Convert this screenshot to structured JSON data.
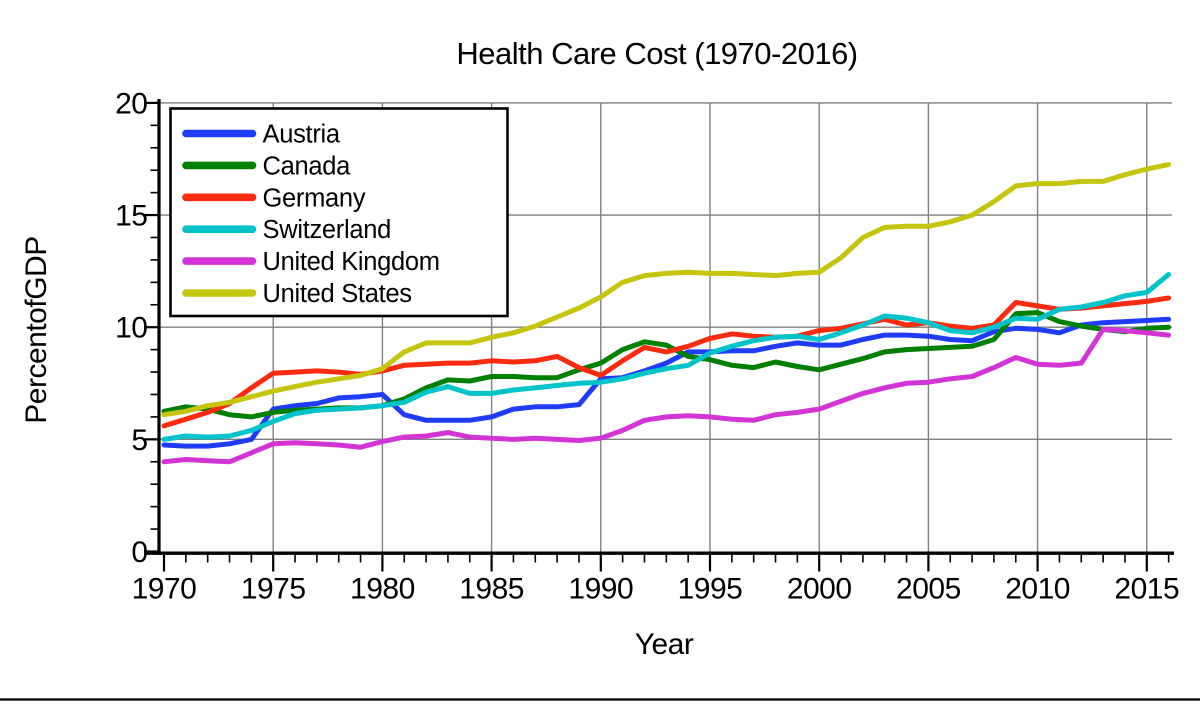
{
  "chart_data": {
    "type": "line",
    "title": "Health Care Cost (1970-2016)",
    "xlabel": "Year",
    "ylabel": "PercentofGDP",
    "xlim": [
      1970,
      2016.15
    ],
    "ylim": [
      0,
      20
    ],
    "x_ticks_major": [
      1970,
      1975,
      1980,
      1985,
      1990,
      1995,
      2000,
      2005,
      2010,
      2015
    ],
    "y_ticks_major": [
      0,
      5,
      10,
      15,
      20
    ],
    "grid": true,
    "grid_color": "#7f7f7f",
    "axis_color": "#000000",
    "legend_position": "top-left",
    "x": [
      1970,
      1971,
      1972,
      1973,
      1974,
      1975,
      1976,
      1977,
      1978,
      1979,
      1980,
      1981,
      1982,
      1983,
      1984,
      1985,
      1986,
      1987,
      1988,
      1989,
      1990,
      1991,
      1992,
      1993,
      1994,
      1995,
      1996,
      1997,
      1998,
      1999,
      2000,
      2001,
      2002,
      2003,
      2004,
      2005,
      2006,
      2007,
      2008,
      2009,
      2010,
      2011,
      2012,
      2013,
      2014,
      2015,
      2016
    ],
    "series": [
      {
        "name": "Austria",
        "color": "#1e3cfa",
        "values": [
          4.75,
          4.7,
          4.7,
          4.8,
          5.0,
          6.35,
          6.5,
          6.6,
          6.85,
          6.9,
          7.0,
          6.1,
          5.85,
          5.85,
          5.85,
          6.0,
          6.35,
          6.45,
          6.45,
          6.55,
          7.7,
          7.75,
          8.05,
          8.4,
          8.9,
          8.9,
          8.95,
          8.95,
          9.15,
          9.3,
          9.2,
          9.2,
          9.45,
          9.65,
          9.65,
          9.6,
          9.45,
          9.4,
          9.8,
          9.95,
          9.9,
          9.75,
          10.1,
          10.2,
          10.25,
          10.3,
          10.35
        ]
      },
      {
        "name": "Canada",
        "color": "#008000",
        "values": [
          6.25,
          6.45,
          6.35,
          6.1,
          6.0,
          6.2,
          6.3,
          6.35,
          6.4,
          6.4,
          6.5,
          6.8,
          7.3,
          7.65,
          7.6,
          7.8,
          7.8,
          7.75,
          7.75,
          8.1,
          8.4,
          9.0,
          9.35,
          9.2,
          8.7,
          8.55,
          8.3,
          8.2,
          8.45,
          8.25,
          8.1,
          8.35,
          8.6,
          8.9,
          9.0,
          9.05,
          9.1,
          9.15,
          9.45,
          10.6,
          10.65,
          10.25,
          10.05,
          9.9,
          9.8,
          9.95,
          10.0
        ]
      },
      {
        "name": "Germany",
        "color": "#fa2b0f",
        "values": [
          5.6,
          5.9,
          6.2,
          6.6,
          7.3,
          7.95,
          8.0,
          8.05,
          8.0,
          7.9,
          8.05,
          8.3,
          8.35,
          8.4,
          8.4,
          8.5,
          8.45,
          8.5,
          8.7,
          8.2,
          7.85,
          8.5,
          9.1,
          8.9,
          9.15,
          9.5,
          9.7,
          9.6,
          9.55,
          9.6,
          9.85,
          9.95,
          10.15,
          10.35,
          10.1,
          10.2,
          10.05,
          9.95,
          10.1,
          11.1,
          10.95,
          10.8,
          10.85,
          10.95,
          11.05,
          11.15,
          11.3
        ]
      },
      {
        "name": "Switzerland",
        "color": "#00c4ca",
        "values": [
          5.0,
          5.15,
          5.1,
          5.15,
          5.4,
          5.8,
          6.15,
          6.3,
          6.35,
          6.4,
          6.5,
          6.65,
          7.1,
          7.35,
          7.05,
          7.05,
          7.2,
          7.3,
          7.4,
          7.5,
          7.55,
          7.7,
          7.95,
          8.15,
          8.3,
          8.85,
          9.15,
          9.4,
          9.55,
          9.6,
          9.45,
          9.75,
          10.1,
          10.5,
          10.4,
          10.2,
          9.85,
          9.75,
          10.0,
          10.4,
          10.35,
          10.8,
          10.9,
          11.1,
          11.4,
          11.55,
          12.35
        ]
      },
      {
        "name": "United Kingdom",
        "color": "#d234d6",
        "values": [
          4.0,
          4.1,
          4.05,
          4.0,
          4.4,
          4.8,
          4.85,
          4.8,
          4.75,
          4.65,
          4.9,
          5.1,
          5.15,
          5.3,
          5.1,
          5.05,
          5.0,
          5.05,
          5.0,
          4.95,
          5.05,
          5.4,
          5.85,
          6.0,
          6.05,
          6.0,
          5.9,
          5.85,
          6.1,
          6.2,
          6.35,
          6.7,
          7.05,
          7.3,
          7.5,
          7.55,
          7.7,
          7.8,
          8.2,
          8.65,
          8.35,
          8.3,
          8.4,
          9.9,
          9.85,
          9.75,
          9.65
        ]
      },
      {
        "name": "United States",
        "color": "#c6c50e",
        "values": [
          6.1,
          6.25,
          6.5,
          6.65,
          6.9,
          7.15,
          7.35,
          7.55,
          7.7,
          7.85,
          8.15,
          8.9,
          9.3,
          9.3,
          9.3,
          9.55,
          9.75,
          10.05,
          10.45,
          10.85,
          11.35,
          12.0,
          12.3,
          12.4,
          12.45,
          12.4,
          12.4,
          12.35,
          12.3,
          12.4,
          12.45,
          13.1,
          14.0,
          14.45,
          14.5,
          14.5,
          14.7,
          15.0,
          15.6,
          16.3,
          16.4,
          16.4,
          16.5,
          16.5,
          16.8,
          17.05,
          17.25
        ]
      }
    ]
  },
  "page": {
    "background": "#ffffff",
    "bottom_border_color": "#000000"
  }
}
